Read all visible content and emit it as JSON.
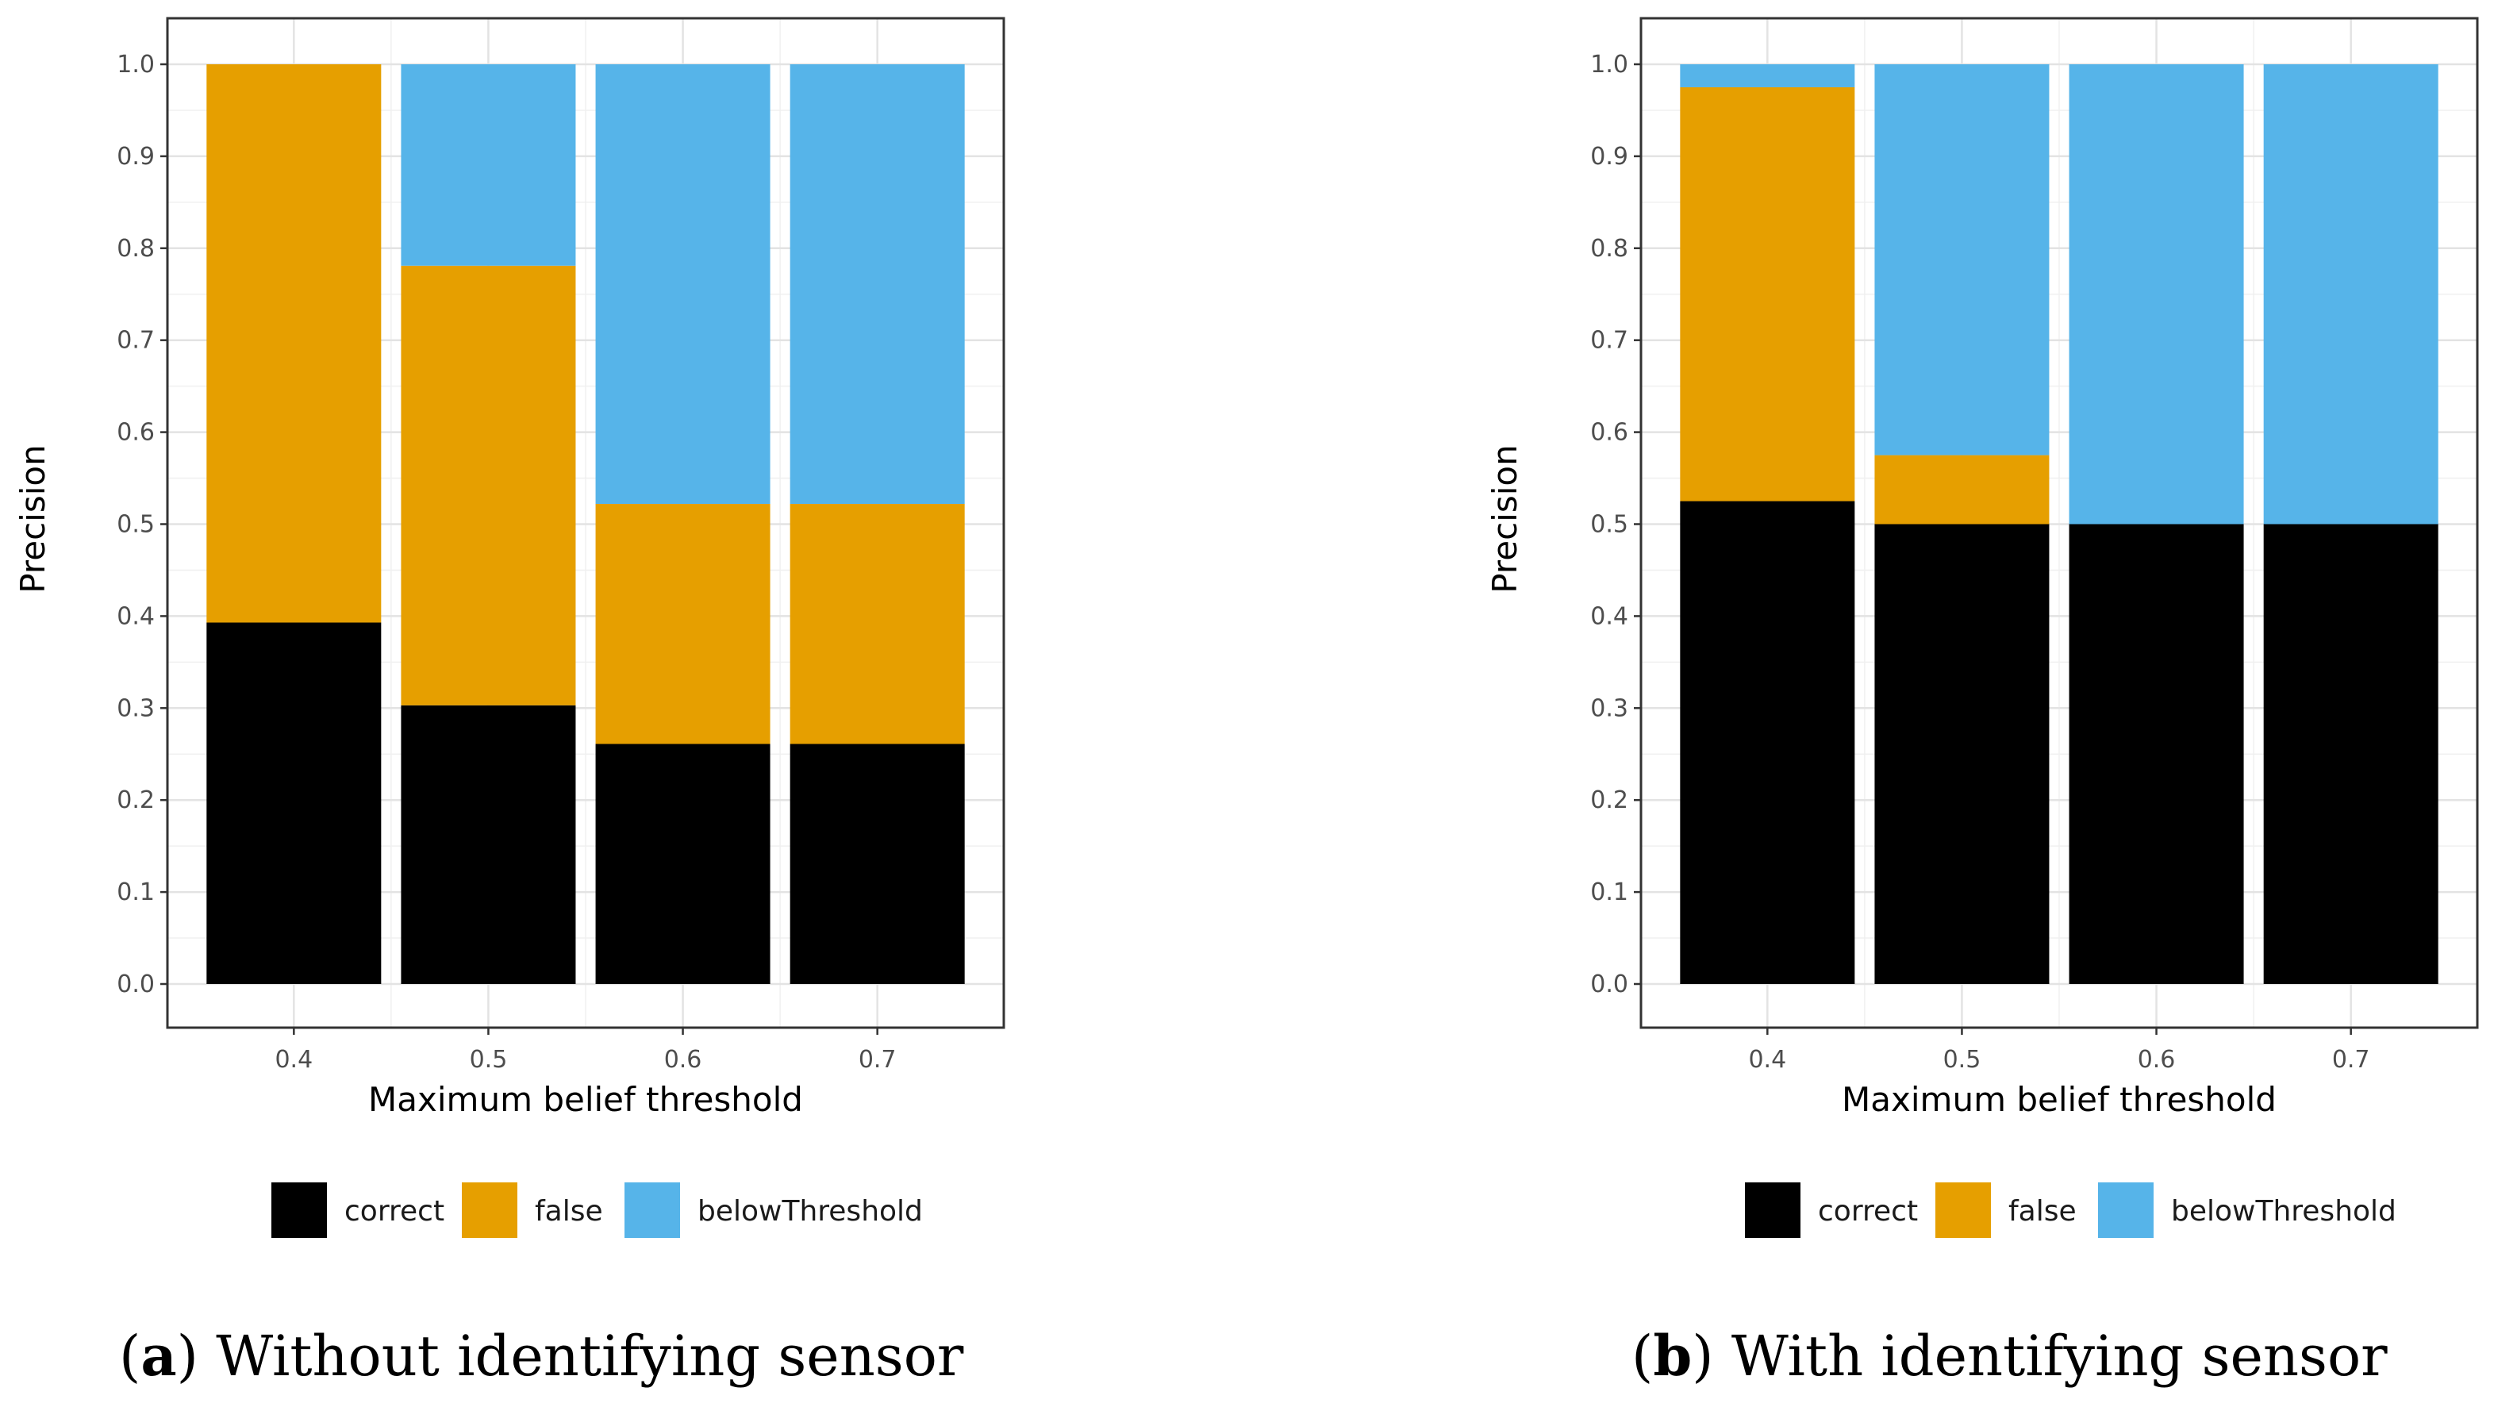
{
  "colors": {
    "correct": "#000000",
    "false": "#E69F00",
    "belowThreshold": "#56B4E9"
  },
  "chart_data": [
    {
      "type": "bar",
      "stacked": true,
      "panel": "a",
      "caption": {
        "letter": "a",
        "text": "Without identifying sensor"
      },
      "categories": [
        "0.4",
        "0.5",
        "0.6",
        "0.7"
      ],
      "series": [
        {
          "name": "correct",
          "values": [
            0.393,
            0.303,
            0.261,
            0.261
          ]
        },
        {
          "name": "false",
          "values": [
            0.607,
            0.478,
            0.261,
            0.261
          ]
        },
        {
          "name": "belowThreshold",
          "values": [
            0.0,
            0.219,
            0.478,
            0.478
          ]
        }
      ],
      "xlabel": "Maximum belief threshold",
      "ylabel": "Precision",
      "ylim": [
        0,
        1.0
      ],
      "yticks": [
        "0.0",
        "0.1",
        "0.2",
        "0.3",
        "0.4",
        "0.5",
        "0.6",
        "0.7",
        "0.8",
        "0.9",
        "1.0"
      ],
      "grid": true,
      "legend_position": "bottom"
    },
    {
      "type": "bar",
      "stacked": true,
      "panel": "b",
      "caption": {
        "letter": "b",
        "text": "With identifying sensor"
      },
      "categories": [
        "0.4",
        "0.5",
        "0.6",
        "0.7"
      ],
      "series": [
        {
          "name": "correct",
          "values": [
            0.525,
            0.5,
            0.5,
            0.5
          ]
        },
        {
          "name": "false",
          "values": [
            0.45,
            0.075,
            0.0,
            0.0
          ]
        },
        {
          "name": "belowThreshold",
          "values": [
            0.025,
            0.425,
            0.5,
            0.5
          ]
        }
      ],
      "xlabel": "Maximum belief threshold",
      "ylabel": "Precision",
      "ylim": [
        0,
        1.0
      ],
      "yticks": [
        "0.0",
        "0.1",
        "0.2",
        "0.3",
        "0.4",
        "0.5",
        "0.6",
        "0.7",
        "0.8",
        "0.9",
        "1.0"
      ],
      "grid": true,
      "legend_position": "bottom"
    }
  ],
  "legend": {
    "items": [
      {
        "key": "correct",
        "label": "correct"
      },
      {
        "key": "false",
        "label": "false"
      },
      {
        "key": "belowThreshold",
        "label": "belowThreshold"
      }
    ]
  }
}
